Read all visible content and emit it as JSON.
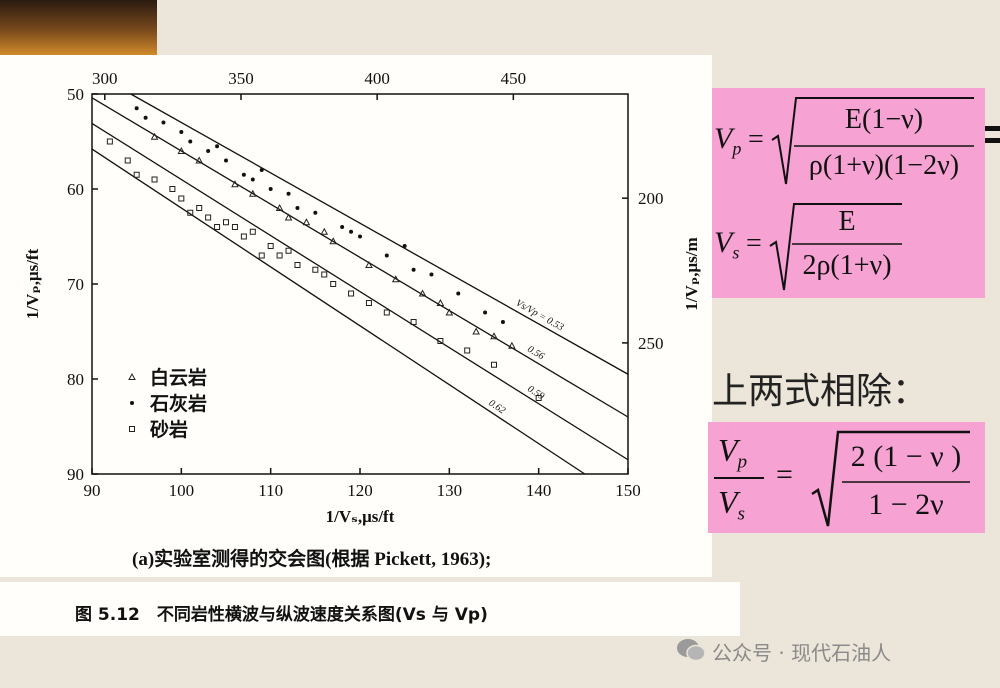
{
  "chart_data": {
    "type": "scatter",
    "x_label": "1/Vₛ,μs/ft",
    "y_label": "1/Vₚ,μs/ft",
    "y2_label": "1/Vₚ,μs/m",
    "xlim": [
      90,
      150
    ],
    "xticks": [
      90,
      100,
      110,
      120,
      130,
      140,
      150
    ],
    "ylim": [
      50,
      90
    ],
    "yticks": [
      50,
      60,
      70,
      80,
      90
    ],
    "y_reversed": true,
    "x2lim": [
      295.3,
      492.1
    ],
    "x2ticks": [
      300,
      350,
      400,
      450
    ],
    "y2lim": [
      164,
      295.3
    ],
    "y2ticks": [
      200,
      250
    ],
    "legend": "lower left",
    "series": [
      {
        "name": "白云岩",
        "marker": "triangle",
        "color": "#222",
        "x": [
          97,
          100,
          102,
          106,
          108,
          111,
          112,
          114,
          116,
          117,
          121,
          124,
          127,
          129,
          130,
          133,
          135,
          137
        ],
        "values": [
          54.5,
          56,
          57,
          59.5,
          60.5,
          62,
          63,
          63.5,
          64.5,
          65.5,
          68,
          69.5,
          71,
          72,
          73,
          75,
          75.5,
          76.5
        ]
      },
      {
        "name": "石灰岩",
        "marker": "circle",
        "color": "#111",
        "x": [
          95,
          96,
          98,
          100,
          101,
          103,
          104,
          105,
          107,
          108,
          109,
          110,
          112,
          113,
          115,
          118,
          119,
          120,
          123,
          125,
          126,
          128,
          131,
          134,
          136
        ],
        "values": [
          51.5,
          52.5,
          53,
          54,
          55,
          56,
          55.5,
          57,
          58.5,
          59,
          58,
          60,
          60.5,
          62,
          62.5,
          64,
          64.5,
          65,
          67,
          66,
          68.5,
          69,
          71,
          73,
          74
        ]
      },
      {
        "name": "砂岩",
        "marker": "square",
        "color": "#222",
        "x": [
          92,
          94,
          95,
          97,
          99,
          100,
          101,
          102,
          103,
          104,
          105,
          106,
          107,
          108,
          109,
          110,
          111,
          112,
          113,
          115,
          116,
          117,
          119,
          121,
          123,
          126,
          129,
          132,
          135,
          140
        ],
        "values": [
          55,
          57,
          58.5,
          59,
          60,
          61,
          62.5,
          62,
          63,
          64,
          63.5,
          64,
          65,
          64.5,
          67,
          66,
          67,
          66.5,
          68,
          68.5,
          69,
          70,
          71,
          72,
          73,
          74,
          76,
          77,
          78.5,
          82
        ]
      }
    ],
    "reference_lines": [
      {
        "label": "Vs/Vp = 0.53",
        "ratio": 0.53
      },
      {
        "label": "0.56",
        "ratio": 0.56
      },
      {
        "label": "0.59",
        "ratio": 0.59
      },
      {
        "label": "0.62",
        "ratio": 0.62
      }
    ]
  },
  "caption": {
    "subtitle": "(a)实验室测得的交会图(根据 Pickett, 1963);",
    "figure": "图 5.12　不同岩性横波与纵波速度关系图(Vs 与 Vp)"
  },
  "formulas": {
    "vp": {
      "lhs": "V",
      "sub": "p",
      "eq": "=",
      "num": "E(1−ν)",
      "den": "ρ(1+ν)(1−2ν)"
    },
    "vs": {
      "lhs": "V",
      "sub": "s",
      "eq": "=",
      "num": "E",
      "den": "2ρ(1+ν)"
    },
    "intro": "上两式相除：",
    "ratio": {
      "num_v": "V",
      "num_sub": "p",
      "den_v": "V",
      "den_sub": "s",
      "eq": "=",
      "num": "2 (1 − ν )",
      "den": "1 − 2ν"
    }
  },
  "watermark": "公众号 · 现代石油人"
}
